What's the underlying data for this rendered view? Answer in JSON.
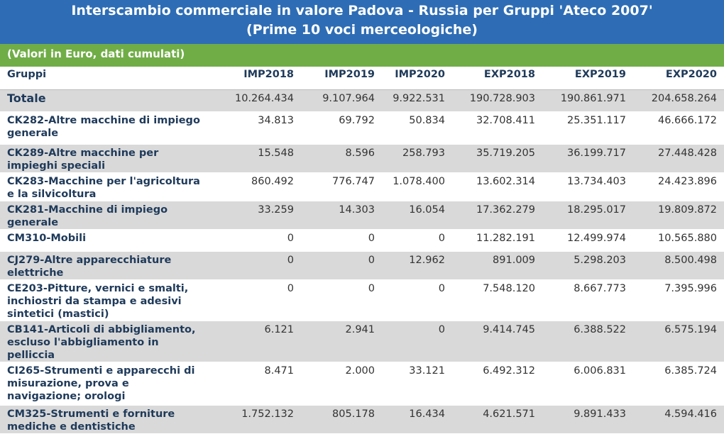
{
  "header": {
    "title_line1": "Interscambio commerciale in valore Padova - Russia per Gruppi 'Ateco 2007'",
    "title_line2": "(Prime 10 voci merceologiche)",
    "subtitle": "(Valori in Euro, dati cumulati)"
  },
  "columns": [
    "Gruppi",
    "IMP2018",
    "IMP2019",
    "IMP2020",
    "EXP2018",
    "EXP2019",
    "EXP2020"
  ],
  "total": {
    "label": "Totale",
    "values": [
      "10.264.434",
      "9.107.964",
      "9.922.531",
      "190.728.903",
      "190.861.971",
      "204.658.264"
    ]
  },
  "rows": [
    {
      "label": "CK282-Altre macchine di impiego generale",
      "values": [
        "34.813",
        "69.792",
        "50.834",
        "32.708.411",
        "25.351.117",
        "46.666.172"
      ]
    },
    {
      "label": "CK289-Altre macchine per impieghi speciali",
      "values": [
        "15.548",
        "8.596",
        "258.793",
        "35.719.205",
        "36.199.717",
        "27.448.428"
      ]
    },
    {
      "label": "CK283-Macchine per l'agricoltura e la silvicoltura",
      "values": [
        "860.492",
        "776.747",
        "1.078.400",
        "13.602.314",
        "13.734.403",
        "24.423.896"
      ]
    },
    {
      "label": "CK281-Macchine di impiego generale",
      "values": [
        "33.259",
        "14.303",
        "16.054",
        "17.362.279",
        "18.295.017",
        "19.809.872"
      ]
    },
    {
      "label": "CM310-Mobili",
      "values": [
        "0",
        "0",
        "0",
        "11.282.191",
        "12.499.974",
        "10.565.880"
      ]
    },
    {
      "label": "CJ279-Altre apparecchiature elettriche",
      "values": [
        "0",
        "0",
        "12.962",
        "891.009",
        "5.298.203",
        "8.500.498"
      ]
    },
    {
      "label": "CE203-Pitture, vernici e smalti, inchiostri da stampa e adesivi sintetici (mastici)",
      "values": [
        "0",
        "0",
        "0",
        "7.548.120",
        "8.667.773",
        "7.395.996"
      ]
    },
    {
      "label": "CB141-Articoli di abbigliamento, escluso l'abbigliamento in pelliccia",
      "values": [
        "6.121",
        "2.941",
        "0",
        "9.414.745",
        "6.388.522",
        "6.575.194"
      ]
    },
    {
      "label": "CI265-Strumenti e apparecchi di misurazione, prova e navigazione; orologi",
      "values": [
        "8.471",
        "2.000",
        "33.121",
        "6.492.312",
        "6.006.831",
        "6.385.724"
      ]
    },
    {
      "label": "CM325-Strumenti e forniture mediche e dentistiche",
      "values": [
        "1.752.132",
        "805.178",
        "16.434",
        "4.621.571",
        "9.891.433",
        "4.594.416"
      ]
    }
  ]
}
